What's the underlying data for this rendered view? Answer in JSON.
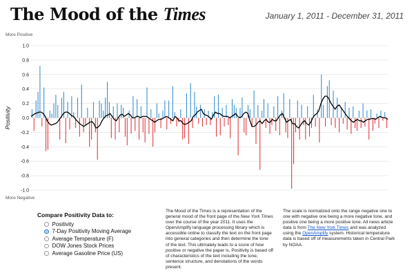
{
  "header": {
    "title_main": "The Mood of the ",
    "title_logo": "Times",
    "date_range": "January 1, 2011 - December 31, 2011"
  },
  "axis_notes": {
    "top": "More Positive",
    "bottom": "More Negative"
  },
  "colors": {
    "positive": "#3a8fd0",
    "negative": "#e2383f",
    "line": "#000000",
    "grid": "#dddddd",
    "link": "#1155cc"
  },
  "controls": {
    "title": "Compare Positivity Data to:",
    "options": [
      {
        "label": "Positivity",
        "selected": false
      },
      {
        "label": "7-Day Positivity Moving Average",
        "selected": true
      },
      {
        "label": "Average Temperature (F)",
        "selected": false
      },
      {
        "label": "DOW Jones Stock Prices",
        "selected": false
      },
      {
        "label": "Average Gasoline Price (US)",
        "selected": false
      }
    ]
  },
  "description": {
    "col1_a": "The Mood of the Times is a representation of the general mood of the front page of the ",
    "col1_em": "New York Times",
    "col1_b": " over the course of the year 2011. It uses the OpenAmplify language processing library which is accessible online to classify the text on the front page into general categories and then determine the tone of the text. This ultimately leads to a score of how positive or negative the paper is. Positivity is based off of characteristics of the text including the tone, sentence structure, and denotations of the words present.",
    "col2_a": "The scale is normalized onto the range negative one to one with negative one being a more negative tone, and positive one being a more positive tone. All news article data is from ",
    "col2_link1": "The New York Times",
    "col2_b": " and was analyzed using the ",
    "col2_link2": "OpenAmplify",
    "col2_c": " system. Historical temperature data is based off of measurements taken in Central Park by NOAA."
  },
  "chart_data": {
    "type": "bar",
    "title": "The Mood of the Times",
    "ylabel": "Positivity",
    "xlabel": "",
    "ylim": [
      -1.0,
      1.0
    ],
    "yticks": [
      1.0,
      0.8,
      0.6,
      0.4,
      0.2,
      0.0,
      -0.2,
      -0.4,
      -0.6,
      -0.8,
      -1.0
    ],
    "ytick_labels": [
      "1.0",
      "0.8",
      "0.6",
      "0.4",
      "0.2",
      "0.0",
      "-0.2",
      "-0.4",
      "-0.6",
      "-0.8",
      "-1.0"
    ],
    "period": {
      "start": "2011-01-01",
      "end": "2011-12-31"
    },
    "series": [
      {
        "name": "Daily Positivity",
        "type": "bar",
        "values": [
          0.12,
          -0.18,
          0.24,
          0.36,
          0.72,
          -0.12,
          0.42,
          -0.46,
          -0.44,
          0.1,
          0.06,
          0.2,
          0.32,
          0.18,
          -0.3,
          0.28,
          0.36,
          -0.35,
          0.22,
          -0.16,
          0.3,
          0.08,
          -0.14,
          0.28,
          -0.26,
          0.46,
          -0.2,
          -0.1,
          0.14,
          -0.4,
          -0.3,
          0.22,
          -0.2,
          -0.58,
          0.24,
          0.2,
          0.1,
          0.28,
          0.5,
          0.22,
          -0.28,
          0.16,
          -0.3,
          0.2,
          -0.2,
          0.18,
          0.14,
          -0.26,
          -0.38,
          0.1,
          -0.22,
          0.3,
          -0.18,
          0.26,
          -0.3,
          0.16,
          -0.2,
          -0.34,
          0.42,
          -0.22,
          0.12,
          -0.4,
          -0.2,
          0.2,
          0.06,
          -0.14,
          0.1,
          0.24,
          -0.16,
          0.24,
          -0.08,
          0.44,
          0.08,
          -0.12,
          -0.06,
          0.12,
          -0.3,
          -0.28,
          0.34,
          -0.36,
          0.48,
          -0.14,
          0.36,
          0.16,
          -0.08,
          0.18,
          -0.12,
          0.12,
          -0.1,
          0.1,
          -0.1,
          0.08,
          0.3,
          -0.26,
          0.32,
          -0.24,
          0.14,
          -0.12,
          0.18,
          -0.1,
          -0.28,
          0.26,
          0.18,
          0.14,
          -0.52,
          0.14,
          0.28,
          -0.2,
          -0.24,
          0.18,
          0.12,
          -0.12,
          0.38,
          -0.36,
          0.18,
          -0.72,
          0.1,
          0.26,
          -0.14,
          0.2,
          -0.22,
          -0.1,
          0.16,
          -0.18,
          0.3,
          -0.24,
          0.1,
          0.34,
          -0.2,
          -0.28,
          0.26,
          -0.98,
          -0.64,
          -0.2,
          0.24,
          -0.3,
          0.18,
          -0.1,
          -0.3,
          0.16,
          -0.26,
          -0.14,
          0.32,
          -0.12,
          0.12,
          -0.34,
          0.6,
          0.18,
          -0.12,
          0.44,
          0.52,
          -0.1,
          0.38,
          -0.14,
          0.28,
          -0.2,
          0.14,
          -0.08,
          0.22,
          -0.16,
          0.14,
          -0.22,
          0.16,
          -0.14,
          -0.18,
          0.1,
          -0.14,
          0.2,
          -0.12,
          0.1,
          -0.3,
          0.12,
          -0.18,
          -0.08,
          0.06,
          -0.14,
          0.1,
          -0.04,
          0.08,
          -0.14
        ]
      },
      {
        "name": "7-Day Positivity Moving Average",
        "type": "line",
        "values": [
          0.02,
          0.04,
          0.06,
          0.07,
          0.08,
          0.08,
          0.06,
          0.02,
          -0.04,
          -0.08,
          -0.1,
          -0.09,
          -0.08,
          -0.06,
          -0.02,
          0.02,
          0.06,
          0.08,
          0.08,
          0.06,
          0.03,
          0.02,
          -0.02,
          -0.05,
          -0.08,
          -0.1,
          -0.12,
          -0.1,
          -0.08,
          -0.06,
          -0.05,
          -0.08,
          -0.14,
          -0.13,
          -0.1,
          -0.04,
          0.0,
          0.03,
          0.04,
          0.06,
          0.02,
          -0.02,
          -0.04,
          0.0,
          0.04,
          0.05,
          0.02,
          0.04,
          0.06,
          0.04,
          0.0,
          0.0,
          0.02,
          0.02,
          0.0,
          0.02,
          0.02,
          0.02,
          0.0,
          -0.02,
          -0.04,
          -0.06,
          -0.04,
          -0.02,
          -0.02,
          -0.01,
          0.01,
          0.02,
          0.0,
          -0.02,
          -0.04,
          0.02,
          0.0,
          -0.04,
          -0.04,
          -0.08,
          -0.09,
          -0.08,
          -0.06,
          -0.04,
          0.02,
          0.04,
          0.08,
          0.1,
          0.12,
          0.06,
          0.04,
          0.03,
          0.01,
          -0.02,
          0.04,
          0.08,
          0.06,
          0.06,
          0.04,
          0.02,
          0.02,
          0.02,
          0.0,
          0.02,
          0.04,
          0.06,
          0.02,
          0.0,
          0.02,
          0.06,
          0.08,
          0.06,
          -0.04,
          -0.12,
          -0.12,
          -0.1,
          -0.06,
          -0.04,
          -0.08,
          -0.04,
          -0.02,
          -0.06,
          -0.06,
          -0.02,
          -0.04,
          -0.04,
          0.0,
          0.04,
          0.06,
          0.0,
          -0.06,
          -0.04,
          -0.02,
          -0.08,
          -0.08,
          -0.12,
          -0.14,
          -0.1,
          -0.06,
          -0.04,
          -0.08,
          -0.1,
          -0.06,
          0.0,
          0.04,
          0.06,
          0.1,
          0.2,
          0.26,
          0.3,
          0.3,
          0.26,
          0.2,
          0.16,
          0.12,
          0.16,
          0.18,
          0.14,
          0.1,
          0.06,
          0.02,
          -0.01,
          -0.04,
          -0.06,
          -0.04,
          -0.02,
          -0.04,
          -0.04,
          -0.06,
          -0.04,
          -0.02,
          -0.02,
          -0.01,
          -0.01,
          -0.02,
          0.0,
          0.02,
          0.01,
          0.0,
          0.0,
          -0.02
        ]
      }
    ]
  }
}
